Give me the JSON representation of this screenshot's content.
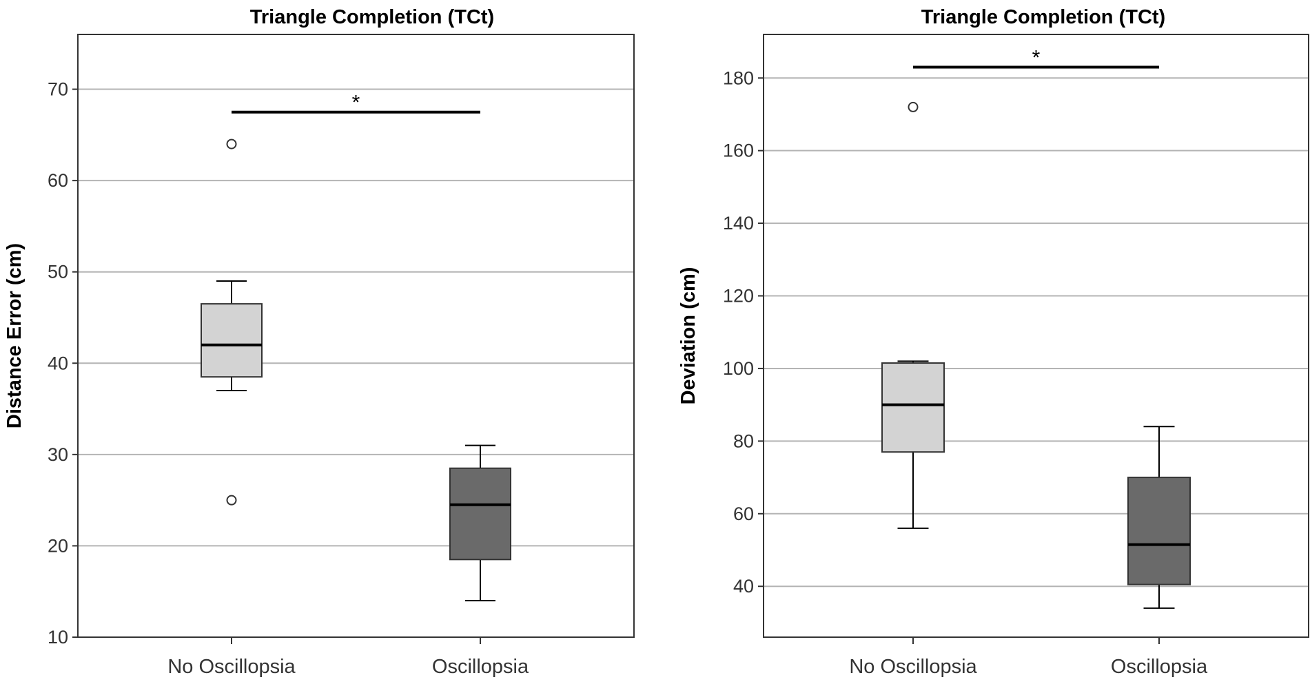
{
  "chart_data": [
    {
      "type": "box",
      "title": "Triangle Completion (TCt)",
      "xlabel": "",
      "ylabel": "Distance Error (cm)",
      "ylim": [
        10,
        76
      ],
      "yticks": [
        10,
        20,
        30,
        40,
        50,
        60,
        70
      ],
      "grid": true,
      "categories": [
        "No Oscillopsia",
        "Oscillopsia"
      ],
      "boxes": [
        {
          "category": "No Oscillopsia",
          "whisker_low": 37,
          "q1": 38.5,
          "median": 42,
          "q3": 46.5,
          "whisker_high": 49,
          "outliers": [
            64,
            25
          ],
          "color": "#d3d3d3"
        },
        {
          "category": "Oscillopsia",
          "whisker_low": 14,
          "q1": 18.5,
          "median": 24.5,
          "q3": 28.5,
          "whisker_high": 31,
          "outliers": [],
          "color": "#6a6a6a"
        }
      ],
      "significance": {
        "from": "No Oscillopsia",
        "to": "Oscillopsia",
        "y": 67.5,
        "label": "*"
      }
    },
    {
      "type": "box",
      "title": "Triangle Completion (TCt)",
      "xlabel": "",
      "ylabel": "Deviation (cm)",
      "ylim": [
        26,
        192
      ],
      "yticks": [
        40,
        60,
        80,
        100,
        120,
        140,
        160,
        180
      ],
      "grid": true,
      "categories": [
        "No Oscillopsia",
        "Oscillopsia"
      ],
      "boxes": [
        {
          "category": "No Oscillopsia",
          "whisker_low": 56,
          "q1": 77,
          "median": 90,
          "q3": 101.5,
          "whisker_high": 102,
          "outliers": [
            172
          ],
          "color": "#d3d3d3"
        },
        {
          "category": "Oscillopsia",
          "whisker_low": 34,
          "q1": 40.5,
          "median": 51.5,
          "q3": 70,
          "whisker_high": 84,
          "outliers": [],
          "color": "#6a6a6a"
        }
      ],
      "significance": {
        "from": "No Oscillopsia",
        "to": "Oscillopsia",
        "y": 183,
        "label": "*"
      }
    }
  ]
}
